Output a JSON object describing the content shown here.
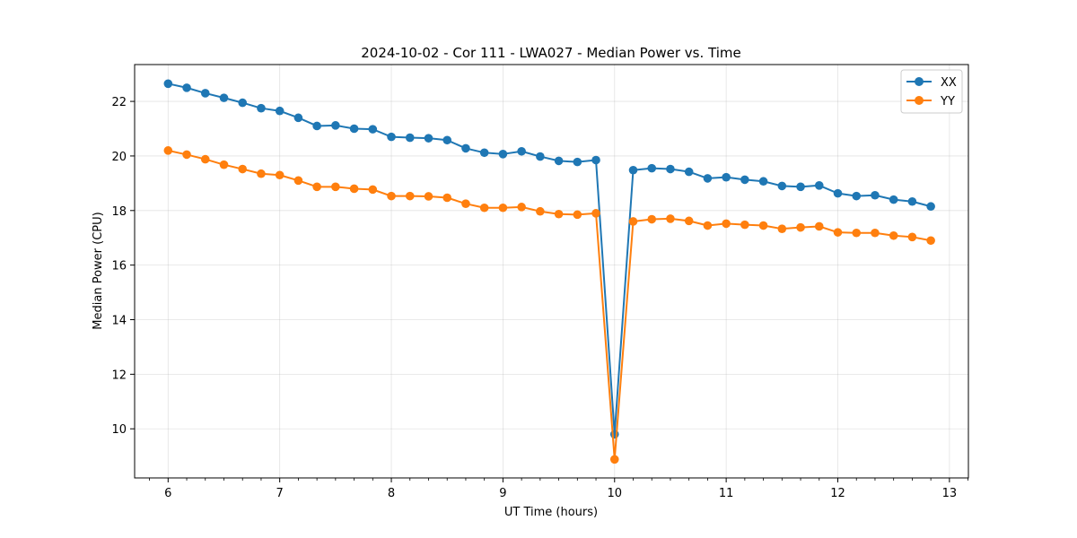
{
  "chart_data": {
    "type": "line",
    "title": "2024-10-02 - Cor 111 - LWA027 - Median Power vs. Time",
    "xlabel": "UT Time (hours)",
    "ylabel": "Median Power (CPU)",
    "xlim": [
      5.7,
      13.17
    ],
    "ylim": [
      8.2,
      23.35
    ],
    "xticks": [
      6,
      7,
      8,
      9,
      10,
      11,
      12,
      13
    ],
    "yticks": [
      10,
      12,
      14,
      16,
      18,
      20,
      22
    ],
    "grid": true,
    "legend_position": "top-right",
    "x": [
      6.0,
      6.1667,
      6.3333,
      6.5,
      6.6667,
      6.8333,
      7.0,
      7.1667,
      7.3333,
      7.5,
      7.6667,
      7.8333,
      8.0,
      8.1667,
      8.3333,
      8.5,
      8.6667,
      8.8333,
      9.0,
      9.1667,
      9.3333,
      9.5,
      9.6667,
      9.8333,
      10.0,
      10.1667,
      10.3333,
      10.5,
      10.6667,
      10.8333,
      11.0,
      11.1667,
      11.3333,
      11.5,
      11.6667,
      11.8333,
      12.0,
      12.1667,
      12.3333,
      12.5,
      12.6667,
      12.8333
    ],
    "series": [
      {
        "name": "XX",
        "color": "#1f77b4",
        "values": [
          22.65,
          22.5,
          22.3,
          22.13,
          21.95,
          21.75,
          21.65,
          21.4,
          21.1,
          21.12,
          21.0,
          20.98,
          20.7,
          20.67,
          20.65,
          20.58,
          20.28,
          20.12,
          20.07,
          20.17,
          19.98,
          19.82,
          19.78,
          19.85,
          9.8,
          19.48,
          19.55,
          19.52,
          19.42,
          19.18,
          19.22,
          19.13,
          19.07,
          18.9,
          18.87,
          18.92,
          18.63,
          18.53,
          18.56,
          18.4,
          18.33,
          18.15
        ]
      },
      {
        "name": "YY",
        "color": "#ff7f0e",
        "values": [
          20.2,
          20.05,
          19.88,
          19.68,
          19.52,
          19.35,
          19.3,
          19.1,
          18.87,
          18.87,
          18.8,
          18.77,
          18.53,
          18.53,
          18.52,
          18.47,
          18.25,
          18.1,
          18.1,
          18.13,
          17.97,
          17.87,
          17.85,
          17.9,
          8.88,
          17.6,
          17.68,
          17.7,
          17.62,
          17.45,
          17.52,
          17.48,
          17.45,
          17.33,
          17.38,
          17.42,
          17.2,
          17.18,
          17.18,
          17.08,
          17.03,
          16.9
        ]
      }
    ]
  }
}
